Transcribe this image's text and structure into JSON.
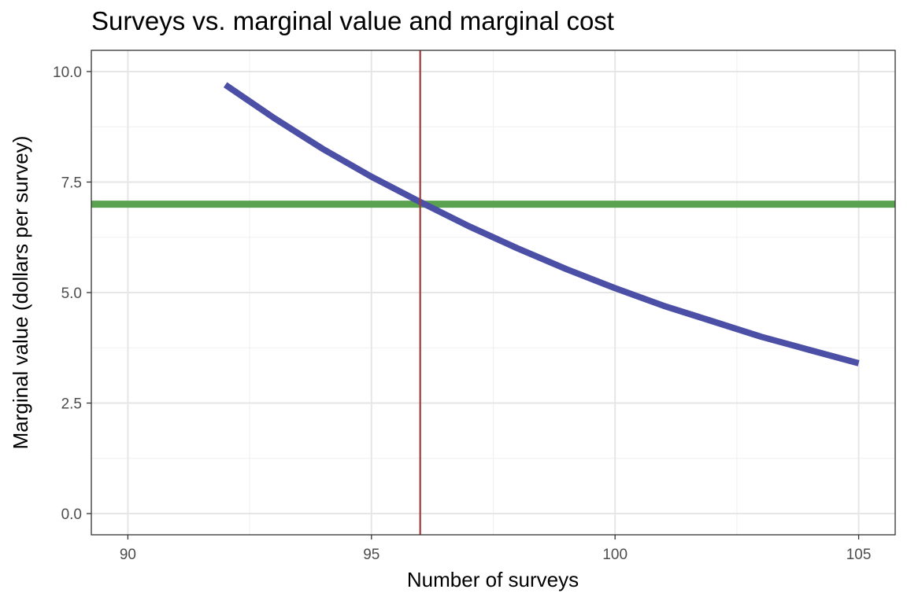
{
  "chart_data": {
    "type": "line",
    "title": "Surveys vs. marginal value and marginal cost",
    "xlabel": "Number of surveys",
    "ylabel": "Marginal value (dollars per survey)",
    "xlim": [
      89.25,
      105.75
    ],
    "ylim": [
      -0.48,
      10.48
    ],
    "x_ticks": [
      90,
      95,
      100,
      105
    ],
    "x_minor_ticks": [
      92.5,
      97.5,
      102.5
    ],
    "y_ticks": [
      0,
      2.5,
      5,
      7.5,
      10
    ],
    "y_minor_ticks": [
      1.25,
      3.75,
      6.25,
      8.75
    ],
    "x_tick_labels": [
      "90",
      "95",
      "100",
      "105"
    ],
    "y_tick_labels": [
      "0.0",
      "2.5",
      "5.0",
      "7.5",
      "10.0"
    ],
    "grid": true,
    "series": [
      {
        "name": "",
        "kind": "curve",
        "color": "#4b4fa6",
        "x": [
          92,
          93,
          94,
          95,
          96,
          97,
          98,
          99,
          100,
          101,
          102,
          103,
          104,
          105
        ],
        "y": [
          9.7,
          8.95,
          8.25,
          7.62,
          7.05,
          6.5,
          6.0,
          5.53,
          5.1,
          4.7,
          4.35,
          4.0,
          3.7,
          3.4
        ]
      },
      {
        "name": "",
        "kind": "hline",
        "color": "#5aa150",
        "y": 7.0
      },
      {
        "name": "",
        "kind": "vline",
        "color": "#a0393a",
        "x": 96
      }
    ]
  }
}
